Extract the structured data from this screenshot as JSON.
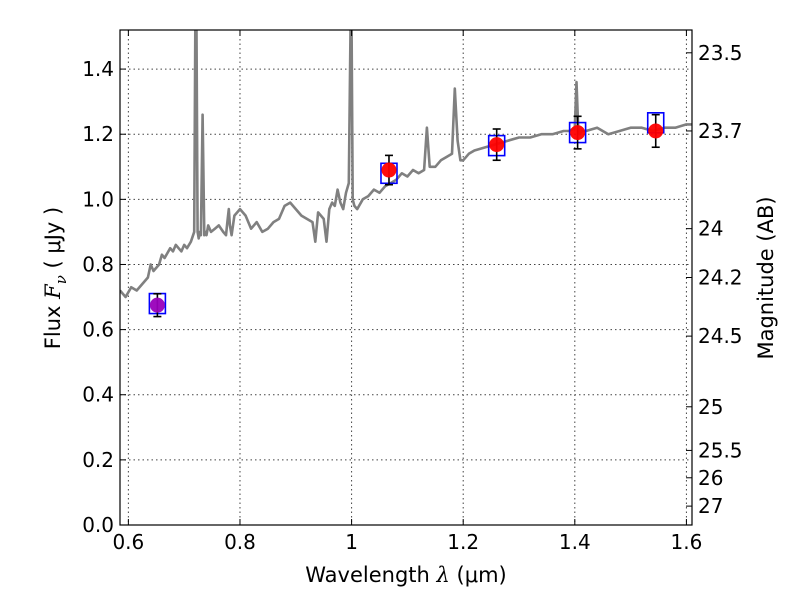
{
  "chart_data": {
    "type": "line",
    "xlabel": {
      "text": "Wavelength",
      "sym": "λ",
      "unit": "(μm)"
    },
    "ylabel": {
      "text": "Flux",
      "sym": "F",
      "sub": "ν",
      "unit": "( μJy )"
    },
    "y2label": "Magnitude (AB)",
    "xlim": [
      0.585,
      1.61
    ],
    "ylim": [
      0.0,
      1.52
    ],
    "x_ticks": [
      0.6,
      0.8,
      1.0,
      1.2,
      1.4,
      1.6
    ],
    "x_tick_labels": [
      "0.6",
      "0.8",
      "1",
      "1.2",
      "1.4",
      "1.6"
    ],
    "y_ticks": [
      0.0,
      0.2,
      0.4,
      0.6,
      0.8,
      1.0,
      1.2,
      1.4
    ],
    "y_tick_labels": [
      "0.0",
      "0.2",
      "0.4",
      "0.6",
      "0.8",
      "1.0",
      "1.2",
      "1.4"
    ],
    "mag_ticks": [
      {
        "label": "23.5",
        "flux": 1.45
      },
      {
        "label": "23.7",
        "flux": 1.21
      },
      {
        "label": "24",
        "flux": 0.91
      },
      {
        "label": "24.2",
        "flux": 0.76
      },
      {
        "label": "24.5",
        "flux": 0.58
      },
      {
        "label": "25",
        "flux": 0.363
      },
      {
        "label": "25.5",
        "flux": 0.229
      },
      {
        "label": "26",
        "flux": 0.145
      },
      {
        "label": "27",
        "flux": 0.058
      }
    ],
    "grid": true,
    "grid_style": "dotted",
    "colors": {
      "spectrum": "#808080",
      "observed": "#ff0000",
      "observed_first": "#9900bb",
      "model_box": "#0000ff",
      "errorbar": "#000000",
      "grid": "#444444"
    },
    "spectrum": {
      "x": [
        0.585,
        0.595,
        0.605,
        0.615,
        0.625,
        0.635,
        0.64,
        0.645,
        0.655,
        0.66,
        0.665,
        0.675,
        0.68,
        0.685,
        0.69,
        0.695,
        0.7,
        0.705,
        0.712,
        0.718,
        0.72,
        0.722,
        0.724,
        0.726,
        0.728,
        0.73,
        0.733,
        0.736,
        0.738,
        0.74,
        0.743,
        0.748,
        0.755,
        0.762,
        0.77,
        0.775,
        0.778,
        0.78,
        0.782,
        0.785,
        0.79,
        0.795,
        0.8,
        0.81,
        0.82,
        0.83,
        0.84,
        0.85,
        0.86,
        0.87,
        0.88,
        0.89,
        0.9,
        0.91,
        0.92,
        0.93,
        0.935,
        0.94,
        0.95,
        0.955,
        0.96,
        0.965,
        0.97,
        0.975,
        0.98,
        0.985,
        0.99,
        0.995,
        0.998,
        1.0,
        1.002,
        1.005,
        1.01,
        1.02,
        1.03,
        1.04,
        1.05,
        1.06,
        1.07,
        1.08,
        1.09,
        1.1,
        1.11,
        1.12,
        1.13,
        1.135,
        1.14,
        1.15,
        1.16,
        1.17,
        1.18,
        1.185,
        1.19,
        1.195,
        1.2,
        1.21,
        1.22,
        1.24,
        1.26,
        1.28,
        1.3,
        1.32,
        1.34,
        1.36,
        1.38,
        1.39,
        1.4,
        1.403,
        1.406,
        1.409,
        1.412,
        1.42,
        1.44,
        1.46,
        1.48,
        1.5,
        1.52,
        1.54,
        1.56,
        1.58,
        1.6,
        1.61
      ],
      "y": [
        0.72,
        0.7,
        0.73,
        0.72,
        0.74,
        0.76,
        0.8,
        0.78,
        0.8,
        0.83,
        0.82,
        0.85,
        0.84,
        0.86,
        0.85,
        0.84,
        0.86,
        0.85,
        0.87,
        0.9,
        1.52,
        1.52,
        0.9,
        0.88,
        0.9,
        0.89,
        1.26,
        0.89,
        0.9,
        0.89,
        0.92,
        0.9,
        0.91,
        0.92,
        0.9,
        0.89,
        0.94,
        0.97,
        0.92,
        0.89,
        0.95,
        0.96,
        0.97,
        0.95,
        0.91,
        0.93,
        0.9,
        0.91,
        0.93,
        0.94,
        0.98,
        0.99,
        0.97,
        0.95,
        0.94,
        0.93,
        0.87,
        0.96,
        0.94,
        0.87,
        0.97,
        0.99,
        0.98,
        1.03,
        0.99,
        0.97,
        1.02,
        1.05,
        1.52,
        1.52,
        1.0,
        0.98,
        0.97,
        1.0,
        1.01,
        1.03,
        1.02,
        1.04,
        1.05,
        1.06,
        1.08,
        1.07,
        1.09,
        1.08,
        1.09,
        1.22,
        1.1,
        1.1,
        1.12,
        1.13,
        1.14,
        1.34,
        1.18,
        1.12,
        1.12,
        1.14,
        1.15,
        1.16,
        1.17,
        1.18,
        1.19,
        1.19,
        1.2,
        1.2,
        1.21,
        1.21,
        1.22,
        1.36,
        1.22,
        1.2,
        1.21,
        1.21,
        1.22,
        1.2,
        1.21,
        1.22,
        1.22,
        1.21,
        1.22,
        1.22,
        1.23,
        1.23
      ]
    },
    "points": [
      {
        "x": 0.652,
        "flux": 0.675,
        "err": 0.035,
        "model": 0.68,
        "first": true
      },
      {
        "x": 1.067,
        "flux": 1.09,
        "err": 0.045,
        "model": 1.08
      },
      {
        "x": 1.26,
        "flux": 1.168,
        "err": 0.048,
        "model": 1.165
      },
      {
        "x": 1.405,
        "flux": 1.205,
        "err": 0.05,
        "model": 1.205
      },
      {
        "x": 1.545,
        "flux": 1.21,
        "err": 0.05,
        "model": 1.235
      }
    ]
  }
}
